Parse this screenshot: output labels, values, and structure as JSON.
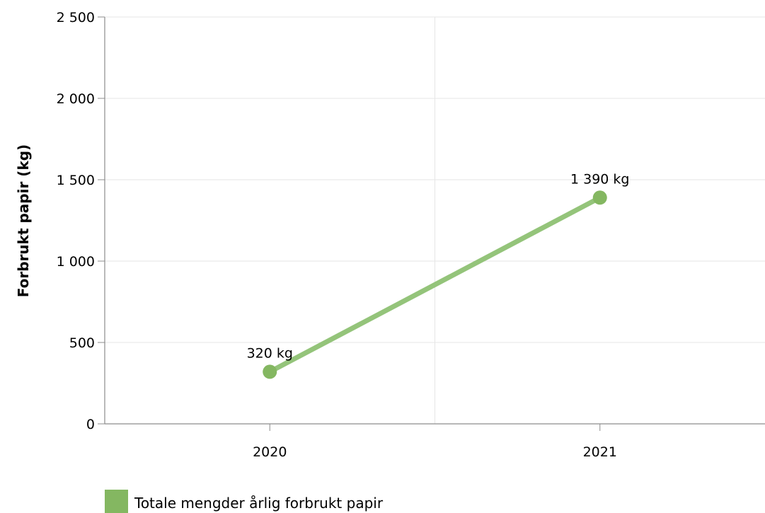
{
  "chart_data": {
    "type": "line",
    "categories": [
      "2020",
      "2021"
    ],
    "series": [
      {
        "name": "Totale mengder årlig forbrukt papir",
        "values": [
          320,
          1390
        ],
        "data_labels": [
          "320 kg",
          "1 390 kg"
        ],
        "color": "#84b761"
      }
    ],
    "xlabel": "",
    "ylabel": "Forbrukt papir (kg)",
    "ylim": [
      0,
      2500
    ],
    "yticks": [
      0,
      500,
      1000,
      1500,
      2000,
      2500
    ],
    "ytick_labels": [
      "0",
      "500",
      "1 000",
      "1 500",
      "2 000",
      "2 500"
    ],
    "grid": true,
    "legend_position": "bottom-left"
  }
}
